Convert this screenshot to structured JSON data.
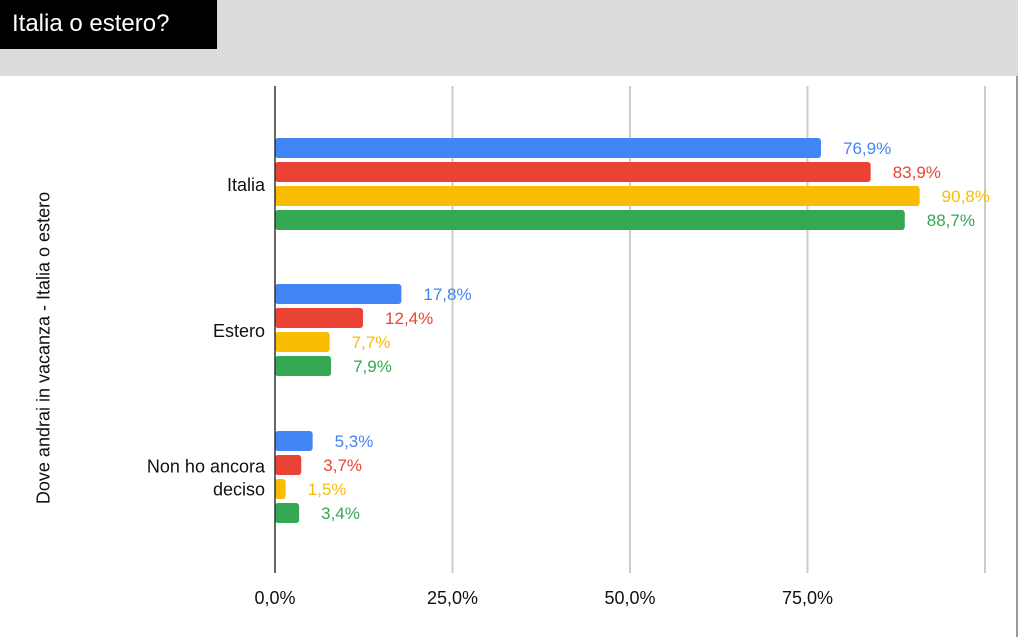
{
  "page": {
    "title": "Italia o estero?"
  },
  "colors": {
    "header_band": "#dcdcdc",
    "title_box": "#000000",
    "grid": "#cccccc",
    "axis": "#333333"
  },
  "chart_data": {
    "type": "bar",
    "orientation": "horizontal",
    "ylabel": "Dove andrai in vacanza - Italia o estero",
    "categories": [
      "Italia",
      "Estero",
      "Non ho ancora deciso"
    ],
    "category_lines": [
      [
        "Italia"
      ],
      [
        "Estero"
      ],
      [
        "Non ho ancora",
        "deciso"
      ]
    ],
    "xlim": [
      0,
      100
    ],
    "xticks": [
      0,
      25,
      50,
      75
    ],
    "xtick_labels": [
      "0,0%",
      "25,0%",
      "50,0%",
      "75,0%"
    ],
    "grid": true,
    "series": [
      {
        "color": "#4285f4",
        "values": [
          76.9,
          17.8,
          5.3
        ],
        "labels": [
          "76,9%",
          "17,8%",
          "5,3%"
        ]
      },
      {
        "color": "#ea4335",
        "values": [
          83.9,
          12.4,
          3.7
        ],
        "labels": [
          "83,9%",
          "12,4%",
          "3,7%"
        ]
      },
      {
        "color": "#fbbc04",
        "values": [
          90.8,
          7.7,
          1.5
        ],
        "labels": [
          "90,8%",
          "7,7%",
          "1,5%"
        ]
      },
      {
        "color": "#34a853",
        "values": [
          88.7,
          7.9,
          3.4
        ],
        "labels": [
          "88,7%",
          "7,9%",
          "3,4%"
        ]
      }
    ]
  }
}
